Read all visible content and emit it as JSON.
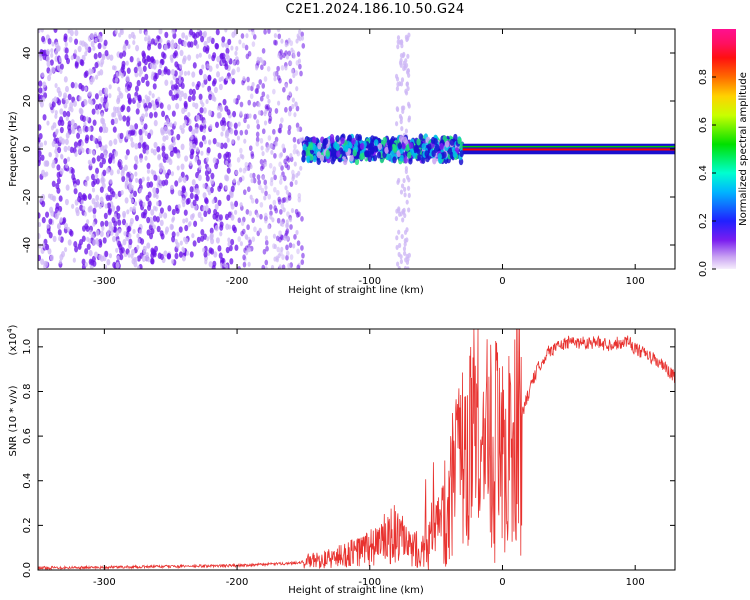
{
  "title": "C2E1.2024.186.10.50.G24",
  "colors": {
    "snr_line": "#e8322f",
    "scatter_dense": "#6a12e8",
    "scatter_light": "#cdb6f5",
    "frequency_line_green": "#00c800",
    "frequency_line_red": "#ff0000"
  },
  "chart_data": [
    {
      "type": "heatmap",
      "title": "",
      "xlabel": "Height of straight line (km)",
      "ylabel": "Frequency (Hz)",
      "xlim": [
        -350,
        130
      ],
      "ylim": [
        -50,
        50
      ],
      "xticks": [
        -300,
        -200,
        -100,
        0,
        100
      ],
      "xtick_labels": [
        "-300",
        "-200",
        "-100",
        "0",
        "100"
      ],
      "yticks": [
        -40,
        -20,
        0,
        20,
        40
      ],
      "ytick_labels": [
        "-40",
        "-20",
        "0",
        "20",
        "40"
      ],
      "grid": false,
      "colorbar": {
        "label": "Normalized spectral amplitude",
        "range": [
          0,
          1
        ],
        "ticks": [
          0.0,
          0.2,
          0.4,
          0.6,
          0.8
        ],
        "tick_labels": [
          "0.0",
          "0.2",
          "0.4",
          "0.6",
          "0.8"
        ],
        "colormap": "hsv rainbow (white-violet → purple → blue → cyan → green → yellow → orange → red → magenta)"
      },
      "regions": [
        {
          "x_range": [
            -350,
            -200
          ],
          "freq_range": [
            -50,
            50
          ],
          "amplitude": "0.1-0.3",
          "description_type": "dense broadband scatter"
        },
        {
          "x_range": [
            -200,
            -150
          ],
          "freq_range": [
            -50,
            50
          ],
          "amplitude": "0.05-0.25",
          "description_type": "scatter thinning"
        },
        {
          "x_range": [
            -150,
            -30
          ],
          "freq_range": [
            -8,
            8
          ],
          "amplitude": "0.3-0.6",
          "description_type": "concentrated band near 0 Hz"
        },
        {
          "x_range": [
            -80,
            -70
          ],
          "freq_range": [
            -50,
            50
          ],
          "amplitude": "0.02-0.1",
          "description_type": "faint vertical stripe"
        },
        {
          "x_range": [
            -30,
            130
          ],
          "freq_range": [
            -1,
            1
          ],
          "amplitude": "0.8-1.0",
          "description_type": "narrow line at 0 Hz"
        }
      ]
    },
    {
      "type": "line",
      "title": "",
      "xlabel": "Height of straight line (km)",
      "ylabel": "SNR (10 * v/v)",
      "y_multiplier_label": "(x10",
      "y_multiplier_exp": "4",
      "xlim": [
        -350,
        130
      ],
      "ylim": [
        0,
        1.08
      ],
      "xticks": [
        -300,
        -200,
        -100,
        0,
        100
      ],
      "xtick_labels": [
        "-300",
        "-200",
        "-100",
        "0",
        "100"
      ],
      "yticks": [
        0.0,
        0.2,
        0.4,
        0.6,
        0.8,
        1.0
      ],
      "ytick_labels": [
        "0.0",
        "0.2",
        "0.4",
        "0.6",
        "0.8",
        "1.0"
      ],
      "grid": false,
      "series": [
        {
          "x": [
            -350,
            -300,
            -250,
            -200,
            -160,
            -130,
            -110,
            -100,
            -90,
            -80,
            -70,
            -60,
            -50,
            -45,
            -40,
            -35,
            -30,
            -25,
            -20,
            -15,
            -10,
            -5,
            0,
            5,
            10,
            15,
            20,
            25,
            30,
            35,
            40,
            50,
            60,
            70,
            80,
            90,
            95,
            100,
            110,
            120,
            130
          ],
          "y": [
            0.01,
            0.012,
            0.016,
            0.02,
            0.03,
            0.05,
            0.08,
            0.1,
            0.13,
            0.16,
            0.09,
            0.1,
            0.12,
            0.2,
            0.3,
            0.4,
            0.45,
            0.55,
            0.6,
            0.55,
            0.6,
            0.55,
            0.55,
            0.5,
            0.55,
            0.7,
            0.8,
            0.88,
            0.94,
            0.98,
            1.0,
            1.02,
            1.02,
            1.02,
            1.01,
            1.02,
            1.03,
            0.99,
            0.96,
            0.92,
            0.86
          ]
        }
      ]
    }
  ]
}
